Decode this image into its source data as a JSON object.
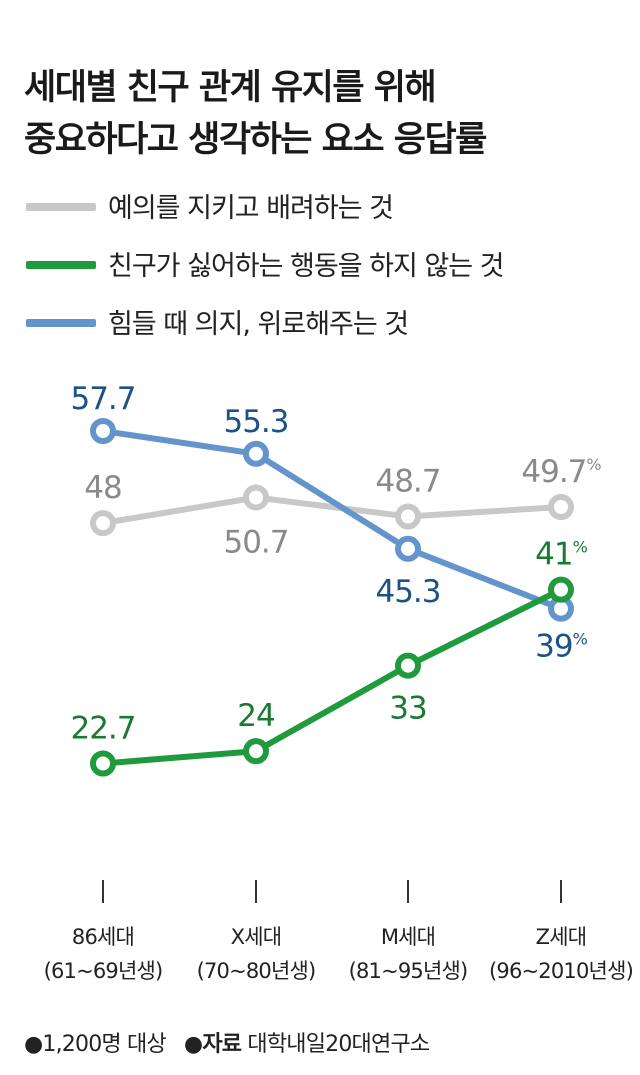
{
  "title": {
    "line1": "세대별 친구 관계 유지를 위해",
    "line2": "중요하다고 생각하는 요소 응답률"
  },
  "chart_data": {
    "type": "line",
    "categories": [
      "86세대",
      "X세대",
      "M세대",
      "Z세대"
    ],
    "category_sublabels": [
      "(61~69년생)",
      "(70~80년생)",
      "(81~95년생)",
      "(96~2010년생)"
    ],
    "unit": "%",
    "ylim": [
      20,
      60
    ],
    "grid": false,
    "legend_position": "top-left",
    "series": [
      {
        "name": "예의를 지키고 배려하는 것",
        "color": "#c8c8c8",
        "label_color": "#8a8a8a",
        "values": [
          48,
          50.7,
          48.7,
          49.7
        ],
        "labels": [
          "48",
          "50.7",
          "48.7",
          "49.7"
        ]
      },
      {
        "name": "친구가 싫어하는 행동을 하지 않는 것",
        "color": "#1f9a3c",
        "label_color": "#1a7a32",
        "values": [
          22.7,
          24,
          33,
          41
        ],
        "labels": [
          "22.7",
          "24",
          "33",
          "41"
        ]
      },
      {
        "name": "힘들 때 의지, 위로해주는 것",
        "color": "#6494cc",
        "label_color": "#1d5288",
        "values": [
          57.7,
          55.3,
          45.3,
          39
        ],
        "labels": [
          "57.7",
          "55.3",
          "45.3",
          "39"
        ]
      }
    ]
  },
  "footer": {
    "bullet": "●",
    "sample": "1,200명 대상",
    "source_label": "자료",
    "source": "대학내일20대연구소"
  }
}
